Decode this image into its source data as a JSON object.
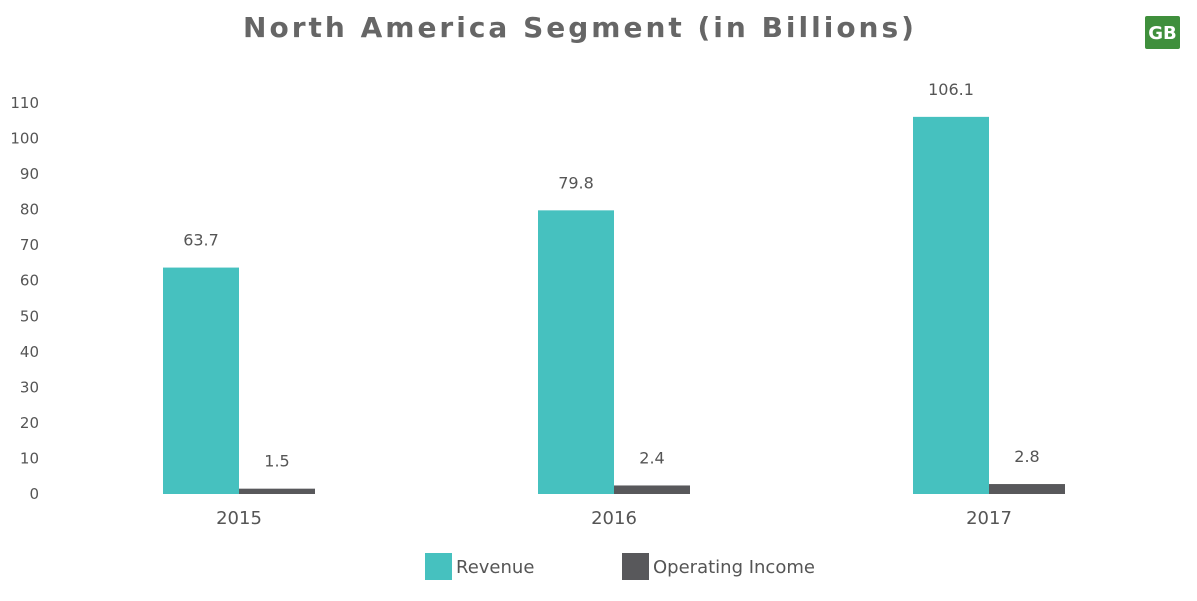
{
  "chart_data": {
    "type": "bar",
    "title": "North America Segment (in Billions)",
    "categories": [
      "2015",
      "2016",
      "2017"
    ],
    "series": [
      {
        "name": "Revenue",
        "values": [
          63.7,
          79.8,
          106.1
        ]
      },
      {
        "name": "Operating Income",
        "values": [
          1.5,
          2.4,
          2.8
        ]
      }
    ],
    "data_labels": [
      [
        "63.7",
        "79.8",
        "106.1"
      ],
      [
        "1.5",
        "2.4",
        "2.8"
      ]
    ],
    "xlabel": "",
    "ylabel": "",
    "ylim": [
      0,
      110
    ],
    "yticks": [
      0,
      10,
      20,
      30,
      40,
      50,
      60,
      70,
      80,
      90,
      100,
      110
    ],
    "grid": false,
    "legend_position": "bottom-center"
  },
  "colors": {
    "revenue": "#46c1bf",
    "operating_income": "#58585b",
    "text": "#555555",
    "title": "#666666",
    "logo_bg": "#3f8f3c"
  },
  "logo": {
    "text": "GB",
    "icon": "gb-logo-icon"
  }
}
